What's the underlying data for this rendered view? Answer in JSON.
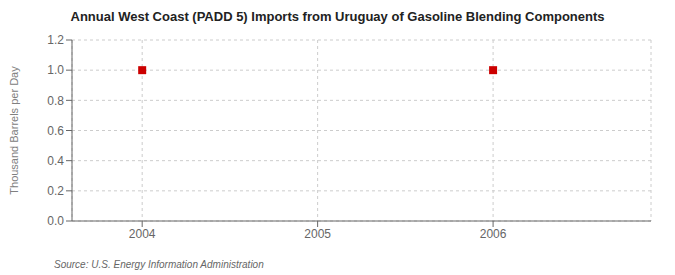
{
  "chart_data": {
    "type": "scatter",
    "title": "Annual West Coast (PADD 5) Imports from Uruguay of Gasoline Blending Components",
    "y_label": "Thousand Barrels per Day",
    "source": "Source: U.S. Energy Information Administration",
    "x": [
      2004,
      2006
    ],
    "values": [
      1.0,
      1.0
    ],
    "color": "#cc0000",
    "marker": "square",
    "xlim": [
      2003.6,
      2006.9
    ],
    "ylim": [
      0.0,
      1.2
    ],
    "xticks": [
      2004,
      2005,
      2006
    ],
    "yticks": [
      {
        "value": 0.0,
        "label": "0.0"
      },
      0.2,
      0.4,
      0.6,
      0.8,
      {
        "value": 1.0,
        "label": "1.0"
      },
      1.2
    ],
    "grid": true
  }
}
